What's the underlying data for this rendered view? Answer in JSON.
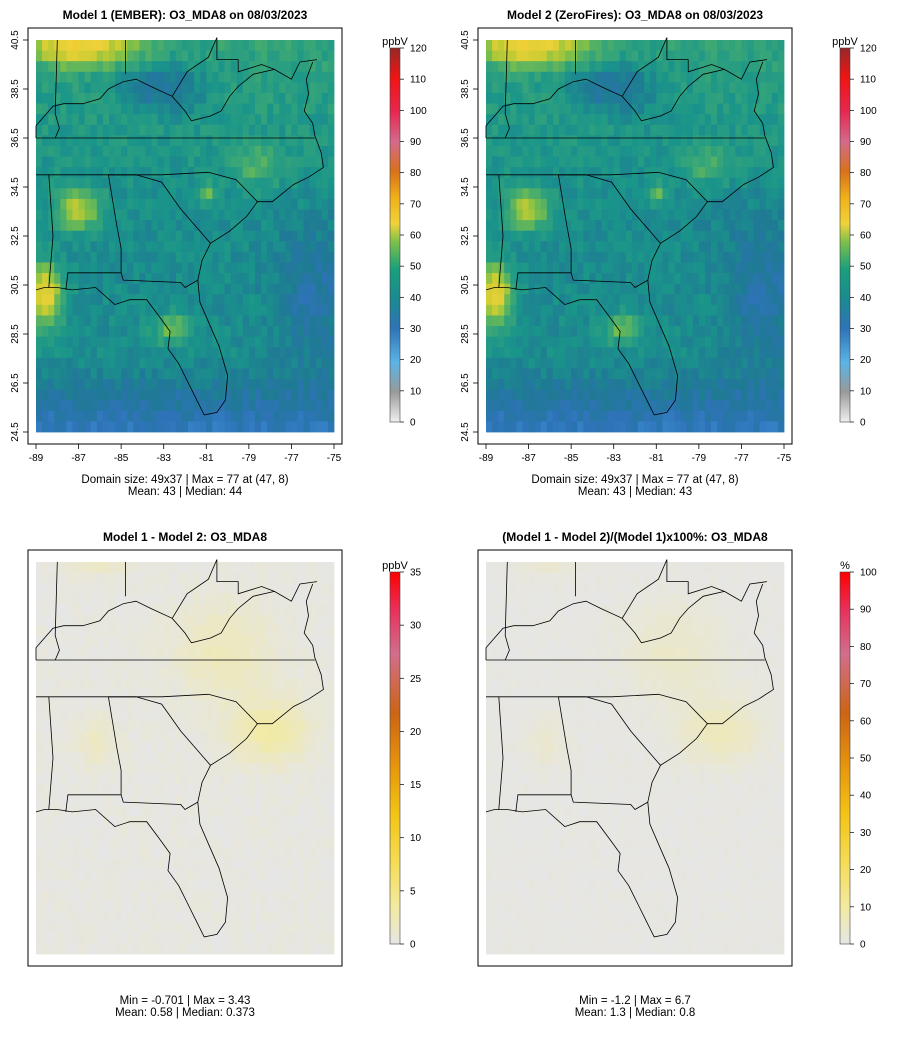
{
  "chart_data": [
    {
      "type": "heatmap",
      "title": "Model 1 (EMBER): O3_MDA8 on 08/03/2023",
      "xticks": [
        "-89",
        "-87",
        "-85",
        "-83",
        "-81",
        "-79",
        "-77",
        "-75"
      ],
      "yticks": [
        "24.5",
        "26.5",
        "28.5",
        "30.5",
        "32.5",
        "34.5",
        "36.5",
        "38.5",
        "40.5"
      ],
      "xlim": [
        -89,
        -75
      ],
      "ylim": [
        24.5,
        40.5
      ],
      "colorbar": {
        "unit": "ppbV",
        "min": 0,
        "max": 120,
        "ticks": [
          "0",
          "10",
          "20",
          "30",
          "40",
          "50",
          "60",
          "70",
          "80",
          "90",
          "100",
          "110",
          "120"
        ]
      },
      "stats_line1": "Domain size: 49x37 | Max = 77 at (47, 8)",
      "stats_line2": "Mean: 43 |  Median: 44",
      "stats": {
        "nx": 49,
        "ny": 37,
        "max": 77,
        "max_at": [
          47,
          8
        ],
        "mean": 43,
        "median": 44
      }
    },
    {
      "type": "heatmap",
      "title": "Model 2 (ZeroFires): O3_MDA8 on 08/03/2023",
      "xticks": [
        "-89",
        "-87",
        "-85",
        "-83",
        "-81",
        "-79",
        "-77",
        "-75"
      ],
      "yticks": [
        "24.5",
        "26.5",
        "28.5",
        "30.5",
        "32.5",
        "34.5",
        "36.5",
        "38.5",
        "40.5"
      ],
      "xlim": [
        -89,
        -75
      ],
      "ylim": [
        24.5,
        40.5
      ],
      "colorbar": {
        "unit": "ppbV",
        "min": 0,
        "max": 120,
        "ticks": [
          "0",
          "10",
          "20",
          "30",
          "40",
          "50",
          "60",
          "70",
          "80",
          "90",
          "100",
          "110",
          "120"
        ]
      },
      "stats_line1": "Domain size: 49x37 | Max = 77 at (47, 8)",
      "stats_line2": "Mean: 43 |  Median: 43",
      "stats": {
        "nx": 49,
        "ny": 37,
        "max": 77,
        "max_at": [
          47,
          8
        ],
        "mean": 43,
        "median": 43
      }
    },
    {
      "type": "heatmap",
      "title": "Model 1 - Model 2: O3_MDA8",
      "colorbar": {
        "unit": "ppbV",
        "min": 0,
        "max": 35,
        "ticks": [
          "0",
          "5",
          "10",
          "15",
          "20",
          "25",
          "30",
          "35"
        ]
      },
      "stats_line1": "Min = -0.701 | Max = 3.43",
      "stats_line2": "Mean: 0.58 |  Median: 0.373",
      "stats": {
        "min": -0.701,
        "max": 3.43,
        "mean": 0.58,
        "median": 0.373
      }
    },
    {
      "type": "heatmap",
      "title": "(Model 1 - Model 2)/(Model 1)x100%: O3_MDA8",
      "colorbar": {
        "unit": "%",
        "min": 0,
        "max": 100,
        "ticks": [
          "0",
          "10",
          "20",
          "30",
          "40",
          "50",
          "60",
          "70",
          "80",
          "90",
          "100"
        ]
      },
      "stats_line1": "Min = -1.2 | Max = 6.7",
      "stats_line2": "Mean: 1.3 |  Median: 0.8",
      "stats": {
        "min": -1.2,
        "max": 6.7,
        "mean": 1.3,
        "median": 0.8
      }
    }
  ],
  "colors": {
    "o3_ramp": [
      "#c8c8c8",
      "#9e9e9e",
      "#5ab4e6",
      "#3d8fd2",
      "#2e73b8",
      "#1f7a94",
      "#1a958a",
      "#3aa776",
      "#7bbf4a",
      "#c8cc32",
      "#f0d23a",
      "#f2b319",
      "#e6950d",
      "#d9711a",
      "#e04040",
      "#f01414",
      "#e01a5a",
      "#d25a8c",
      "#c8284a",
      "#962828"
    ],
    "diff_ramp": [
      "#e6e6e6",
      "#f2eaa0",
      "#f5dc55",
      "#f2c316",
      "#e6a00a",
      "#d9800f",
      "#cc6414",
      "#d26e8c",
      "#e04080",
      "#f01428",
      "#ff0000"
    ],
    "pct_ramp": [
      "#e6e6e6",
      "#f2eaa0",
      "#f5dc55",
      "#f2c316",
      "#e6a00a",
      "#d9800f",
      "#cc6414",
      "#d26e8c",
      "#e04080",
      "#f01428",
      "#ff0000"
    ]
  }
}
